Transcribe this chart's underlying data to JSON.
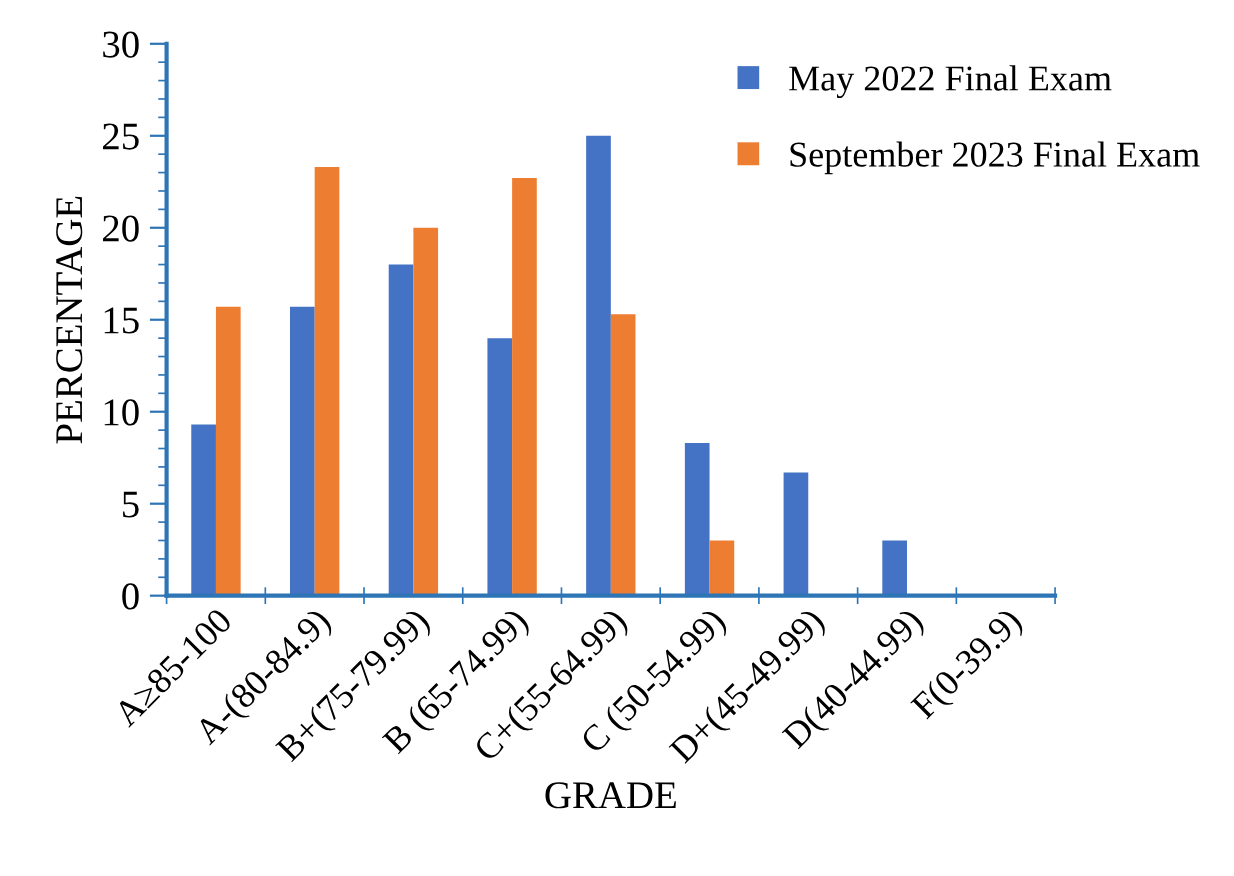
{
  "chart_data": {
    "type": "bar",
    "xlabel": "GRADE",
    "ylabel": "PERCENTAGE",
    "categories": [
      "A≥85-100",
      "A-(80-84.9)",
      "B+(75-79.99)",
      "B (65-74.99)",
      "C+(55-64.99)",
      "C (50-54.99)",
      "D+(45-49.99)",
      "D(40-44.99)",
      "F(0-39.9)"
    ],
    "series": [
      {
        "name": "May 2022 Final Exam",
        "color": "#4472c4",
        "values": [
          9.3,
          15.7,
          18,
          14,
          25,
          8.3,
          6.7,
          3,
          0
        ]
      },
      {
        "name": "September 2023 Final Exam",
        "color": "#ed7d31",
        "values": [
          15.7,
          23.3,
          20,
          22.7,
          15.3,
          3,
          0,
          0,
          0
        ]
      }
    ],
    "ylim": [
      0,
      30
    ],
    "yticks": [
      0,
      5,
      10,
      15,
      20,
      25,
      30
    ],
    "grid": false,
    "legend": "top right"
  }
}
